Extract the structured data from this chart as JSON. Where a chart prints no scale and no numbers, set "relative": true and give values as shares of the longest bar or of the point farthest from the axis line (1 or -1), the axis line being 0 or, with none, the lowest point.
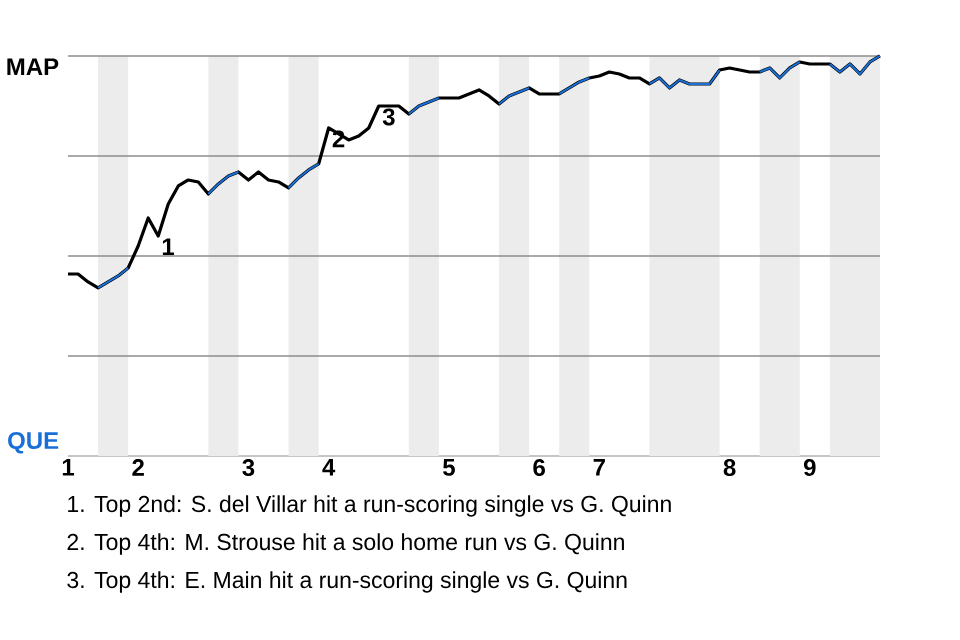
{
  "chart_data": {
    "type": "line",
    "relative": true,
    "categories": [
      "1",
      null,
      null,
      null,
      null,
      null,
      null,
      "2",
      null,
      null,
      null,
      null,
      null,
      null,
      null,
      null,
      null,
      null,
      "3",
      null,
      null,
      null,
      null,
      null,
      null,
      null,
      "4",
      null,
      null,
      null,
      null,
      null,
      null,
      null,
      null,
      null,
      null,
      null,
      "5",
      null,
      null,
      null,
      null,
      null,
      null,
      null,
      null,
      "6",
      null,
      null,
      null,
      null,
      null,
      "7",
      null,
      null,
      null,
      null,
      null,
      null,
      null,
      null,
      null,
      null,
      null,
      null,
      "8",
      null,
      null,
      null,
      null,
      null,
      null,
      null,
      "9",
      null,
      null,
      null,
      null,
      null,
      null,
      null
    ],
    "series": [
      {
        "color": "#000000",
        "values": [
          0.455,
          0.455,
          0.435,
          0.42,
          0.435,
          0.45,
          0.47,
          0.525,
          0.595,
          0.55,
          0.63,
          0.675,
          0.69,
          0.685,
          0.655,
          0.68,
          0.7,
          0.71,
          0.69,
          0.71,
          0.69,
          0.685,
          0.67,
          0.695,
          0.715,
          0.73,
          0.82,
          0.805,
          0.79,
          0.8,
          0.82,
          0.875,
          0.875,
          0.875,
          0.855,
          0.875,
          0.885,
          0.895,
          0.895,
          0.895,
          0.905,
          0.915,
          0.9,
          0.88,
          0.9,
          0.91,
          0.92,
          0.905,
          0.905,
          0.905,
          0.92,
          0.935,
          0.945,
          0.95,
          0.96,
          0.955,
          0.945,
          0.945,
          0.93,
          0.945,
          0.92,
          0.94,
          0.93,
          0.93,
          0.93,
          0.965,
          0.97,
          0.965,
          0.96,
          0.96,
          0.97,
          0.945,
          0.97,
          0.985,
          0.98,
          0.98,
          0.98,
          0.96,
          0.98,
          0.955,
          0.985,
          1
        ]
      },
      {
        "color": "#1a6fd6",
        "values": [
          null,
          null,
          null,
          0.42,
          0.435,
          0.45,
          0.47,
          null,
          null,
          null,
          null,
          null,
          null,
          null,
          0.655,
          0.68,
          0.7,
          0.71,
          null,
          null,
          null,
          null,
          0.67,
          0.695,
          0.715,
          0.73,
          null,
          null,
          null,
          null,
          null,
          null,
          null,
          null,
          0.855,
          0.875,
          0.885,
          0.895,
          null,
          null,
          null,
          null,
          null,
          0.88,
          0.9,
          0.91,
          0.92,
          null,
          null,
          0.905,
          0.92,
          0.935,
          0.945,
          null,
          null,
          null,
          null,
          null,
          0.93,
          0.945,
          0.92,
          0.94,
          0.93,
          0.93,
          0.93,
          0.965,
          null,
          null,
          null,
          0.96,
          0.97,
          0.945,
          0.97,
          0.985,
          null,
          null,
          0.98,
          0.96,
          0.98,
          0.955,
          0.985,
          1
        ]
      }
    ],
    "grid": "y",
    "annotations": [
      "MAP",
      "QUE",
      "1",
      "2",
      "3",
      "1. Top 2nd: S. del Villar hit a run-scoring single vs G. Quinn",
      "2. Top 4th: M. Strouse hit a solo home run vs G. Quinn",
      "3. Top 4th: E. Main hit a run-scoring single vs G. Quinn"
    ]
  }
}
